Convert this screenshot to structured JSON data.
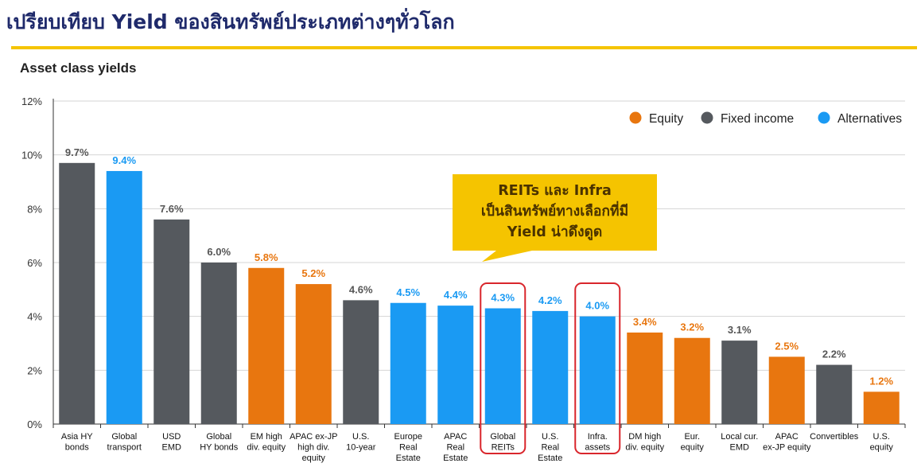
{
  "header": {
    "title": "เปรียบเทียบ Yield ของสินทรัพย์ประเภทต่างๆทั่วโลก"
  },
  "colors": {
    "equity": "#e8760f",
    "fixed_income": "#55595e",
    "alternatives": "#1a9af3",
    "accent": "#f5c400",
    "highlight": "#d9262c"
  },
  "callout": {
    "lines": [
      "REITs และ Infra",
      "เป็นสินทรัพย์ทางเลือกที่มี",
      "Yield น่าดึงดูด"
    ]
  },
  "chart_data": {
    "type": "bar",
    "title": "Asset class yields",
    "ylim": [
      0,
      12
    ],
    "yticks": [
      0,
      2,
      4,
      6,
      8,
      10,
      12
    ],
    "ytick_labels": [
      "0%",
      "2%",
      "4%",
      "6%",
      "8%",
      "10%",
      "12%"
    ],
    "legend": {
      "position": "top-right",
      "entries": [
        {
          "key": "equity",
          "label": "Equity"
        },
        {
          "key": "fixed_income",
          "label": "Fixed income"
        },
        {
          "key": "alternatives",
          "label": "Alternatives"
        }
      ]
    },
    "categories": [
      [
        "Asia HY",
        "bonds"
      ],
      [
        "Global",
        "transport"
      ],
      [
        "USD",
        "EMD"
      ],
      [
        "Global",
        "HY bonds"
      ],
      [
        "EM high",
        "div. equity"
      ],
      [
        "APAC ex-JP",
        "high div.",
        "equity"
      ],
      [
        "U.S.",
        "10-year"
      ],
      [
        "Europe",
        "Real",
        "Estate"
      ],
      [
        "APAC",
        "Real",
        "Estate"
      ],
      [
        "Global",
        "REITs"
      ],
      [
        "U.S.",
        "Real",
        "Estate"
      ],
      [
        "Infra.",
        "assets"
      ],
      [
        "DM high",
        "div. equity"
      ],
      [
        "Eur.",
        "equity"
      ],
      [
        "Local cur.",
        "EMD"
      ],
      [
        "APAC",
        "ex-JP equity"
      ],
      [
        "Convertibles"
      ],
      [
        "U.S.",
        "equity"
      ]
    ],
    "values": [
      9.7,
      9.4,
      7.6,
      6.0,
      5.8,
      5.2,
      4.6,
      4.5,
      4.4,
      4.3,
      4.2,
      4.0,
      3.4,
      3.2,
      3.1,
      2.5,
      2.2,
      1.2
    ],
    "value_labels": [
      "9.7%",
      "9.4%",
      "7.6%",
      "6.0%",
      "5.8%",
      "5.2%",
      "4.6%",
      "4.5%",
      "4.4%",
      "4.3%",
      "4.2%",
      "4.0%",
      "3.4%",
      "3.2%",
      "3.1%",
      "2.5%",
      "2.2%",
      "1.2%"
    ],
    "groups": [
      "fixed_income",
      "alternatives",
      "fixed_income",
      "fixed_income",
      "equity",
      "equity",
      "fixed_income",
      "alternatives",
      "alternatives",
      "alternatives",
      "alternatives",
      "alternatives",
      "equity",
      "equity",
      "fixed_income",
      "equity",
      "fixed_income",
      "equity"
    ],
    "highlighted": [
      9,
      11
    ],
    "grid": true
  }
}
